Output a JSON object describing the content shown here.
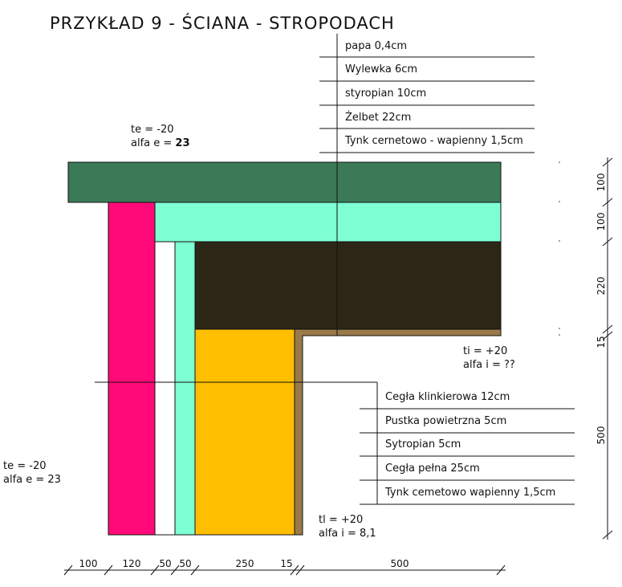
{
  "title": "PRZYKŁAD 9 - ŚCIANA - STROPODACH",
  "roof_layers": [
    "papa 0,4cm",
    "Wylewka 6cm",
    "styropian 10cm",
    "Żelbet 22cm",
    "Tynk cernetowo - wapienny 1,5cm"
  ],
  "wall_layers": [
    "Cegła klinkierowa 12cm",
    "Pustka powietrzna 5cm",
    "Sytropian 5cm",
    "Cegła pełna 25cm",
    "Tynk cemetowo wapienny 1,5cm"
  ],
  "conditions": {
    "top_ext_te": "te = -20",
    "top_ext_alfa_prefix": "alfa e = ",
    "top_ext_alfa_value": "23",
    "int_ti_upper": "ti = +20",
    "int_alfa_upper": "alfa i = ??",
    "left_ext_te": "te = -20",
    "left_ext_alfa": "alfa e = 23",
    "int_ti_lower": "tl = +20",
    "int_alfa_lower": "alfa i = 8,1"
  },
  "dims_horizontal": [
    "100",
    "120",
    "50",
    "50",
    "250",
    "15",
    "500"
  ],
  "dims_vertical": [
    "100",
    "100",
    "220",
    "15",
    "500"
  ],
  "colors": {
    "papa": "#3b7a57",
    "styropian": "#7fffd4",
    "zelbet": "#2b2616",
    "cegla_klinkierowa": "#ff0a78",
    "cegla_pelna": "#ffbf00",
    "tynk": "#9a7a48"
  }
}
